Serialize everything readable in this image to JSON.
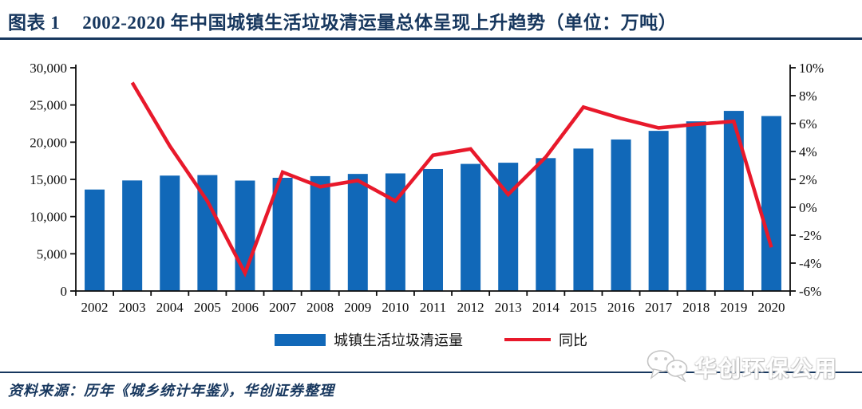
{
  "header": {
    "figure_label": "图表 1",
    "title": "2002-2020 年中国城镇生活垃圾清运量总体呈现上升趋势（单位：万吨）"
  },
  "footer": {
    "source": "资料来源：历年《城乡统计年鉴》，华创证券整理",
    "watermark": "华创环保公用",
    "watermark_icon": "wechat-icon"
  },
  "colors": {
    "bar": "#1168b8",
    "line": "#e8192b",
    "navy": "#17375e",
    "axis": "#0d0d0d"
  },
  "chart_data": {
    "type": "bar+line combo",
    "grid": false,
    "legend_position": "bottom",
    "categories": [
      "2002",
      "2003",
      "2004",
      "2005",
      "2006",
      "2007",
      "2008",
      "2009",
      "2010",
      "2011",
      "2012",
      "2013",
      "2014",
      "2015",
      "2016",
      "2017",
      "2018",
      "2019",
      "2020"
    ],
    "series": [
      {
        "name": "城镇生活垃圾清运量",
        "type": "bar",
        "axis": "left",
        "color": "#1168b8",
        "values": [
          13638,
          14857,
          15509,
          15577,
          14841,
          15215,
          15438,
          15734,
          15805,
          16395,
          17081,
          17239,
          17860,
          19142,
          20362,
          21521,
          22802,
          24206,
          23512
        ]
      },
      {
        "name": "同比",
        "type": "line",
        "axis": "right",
        "color": "#e8192b",
        "values": [
          null,
          8.94,
          4.39,
          0.44,
          -4.72,
          2.52,
          1.47,
          1.92,
          0.45,
          3.73,
          4.18,
          0.92,
          3.6,
          7.18,
          6.37,
          5.69,
          5.95,
          6.16,
          -2.87
        ]
      }
    ],
    "left_axis": {
      "min": 0,
      "max": 30000,
      "ticks": [
        0,
        5000,
        10000,
        15000,
        20000,
        25000,
        30000
      ],
      "tick_labels": [
        "0",
        "5,000",
        "10,000",
        "15,000",
        "20,000",
        "25,000",
        "30,000"
      ],
      "unit": "万吨"
    },
    "right_axis": {
      "min": -6,
      "max": 10,
      "ticks": [
        -6,
        -4,
        -2,
        0,
        2,
        4,
        6,
        8,
        10
      ],
      "tick_labels": [
        "-6%",
        "-4%",
        "-2%",
        "0%",
        "2%",
        "4%",
        "6%",
        "8%",
        "10%"
      ],
      "unit": "%"
    }
  }
}
